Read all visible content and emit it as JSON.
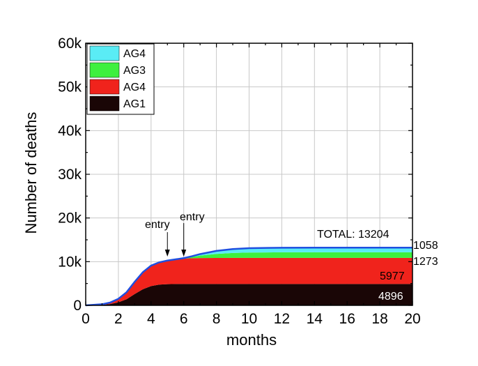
{
  "chart_data": {
    "type": "area",
    "stacked": true,
    "xlabel": "months",
    "ylabel": "Number of deaths",
    "xlim": [
      0,
      20
    ],
    "ylim": [
      0,
      60000
    ],
    "xticks": [
      "0",
      "2",
      "4",
      "6",
      "8",
      "10",
      "12",
      "14",
      "16",
      "18",
      "20"
    ],
    "yticks": [
      "0",
      "10k",
      "20k",
      "30k",
      "40k",
      "50k",
      "60k"
    ],
    "grid": true,
    "legend_position": "top-left",
    "x": [
      0,
      1,
      1.5,
      2,
      2.5,
      3,
      3.5,
      4,
      4.5,
      5,
      5.5,
      6,
      6.5,
      7,
      8,
      9,
      10,
      12,
      14,
      16,
      18,
      20
    ],
    "series": [
      {
        "name": "AG1",
        "color": "#1a0606",
        "values": [
          0,
          120,
          300,
          700,
          1400,
          2600,
          3700,
          4400,
          4750,
          4850,
          4880,
          4890,
          4893,
          4895,
          4896,
          4896,
          4896,
          4896,
          4896,
          4896,
          4896,
          4896
        ]
      },
      {
        "name": "AG4",
        "color": "#f0231c",
        "values": [
          0,
          130,
          350,
          800,
          1600,
          2800,
          3900,
          4700,
          5100,
          5400,
          5650,
          5820,
          5900,
          5940,
          5965,
          5972,
          5976,
          5977,
          5977,
          5977,
          5977,
          5977
        ]
      },
      {
        "name": "AG3",
        "color": "#3ef03e",
        "values": [
          0,
          0,
          0,
          0,
          0,
          0,
          0,
          0,
          0,
          0,
          0,
          100,
          300,
          550,
          900,
          1120,
          1220,
          1265,
          1272,
          1273,
          1273,
          1273
        ]
      },
      {
        "name": "AG4",
        "color": "#5aecf5",
        "values": [
          0,
          0,
          0,
          0,
          0,
          0,
          0,
          0,
          0,
          0,
          0,
          0,
          150,
          350,
          700,
          900,
          1000,
          1045,
          1055,
          1058,
          1058,
          1058
        ]
      }
    ],
    "boundary_color": "#1f4fe0",
    "annotations": {
      "total": "TOTAL: 13204",
      "label_ag4_top": "1058",
      "label_ag3": "1273",
      "label_ag4": "5977",
      "label_ag1": "4896",
      "entry_1": "entry",
      "entry_2": "entry",
      "entry_1_x": 5,
      "entry_2_x": 6
    }
  }
}
